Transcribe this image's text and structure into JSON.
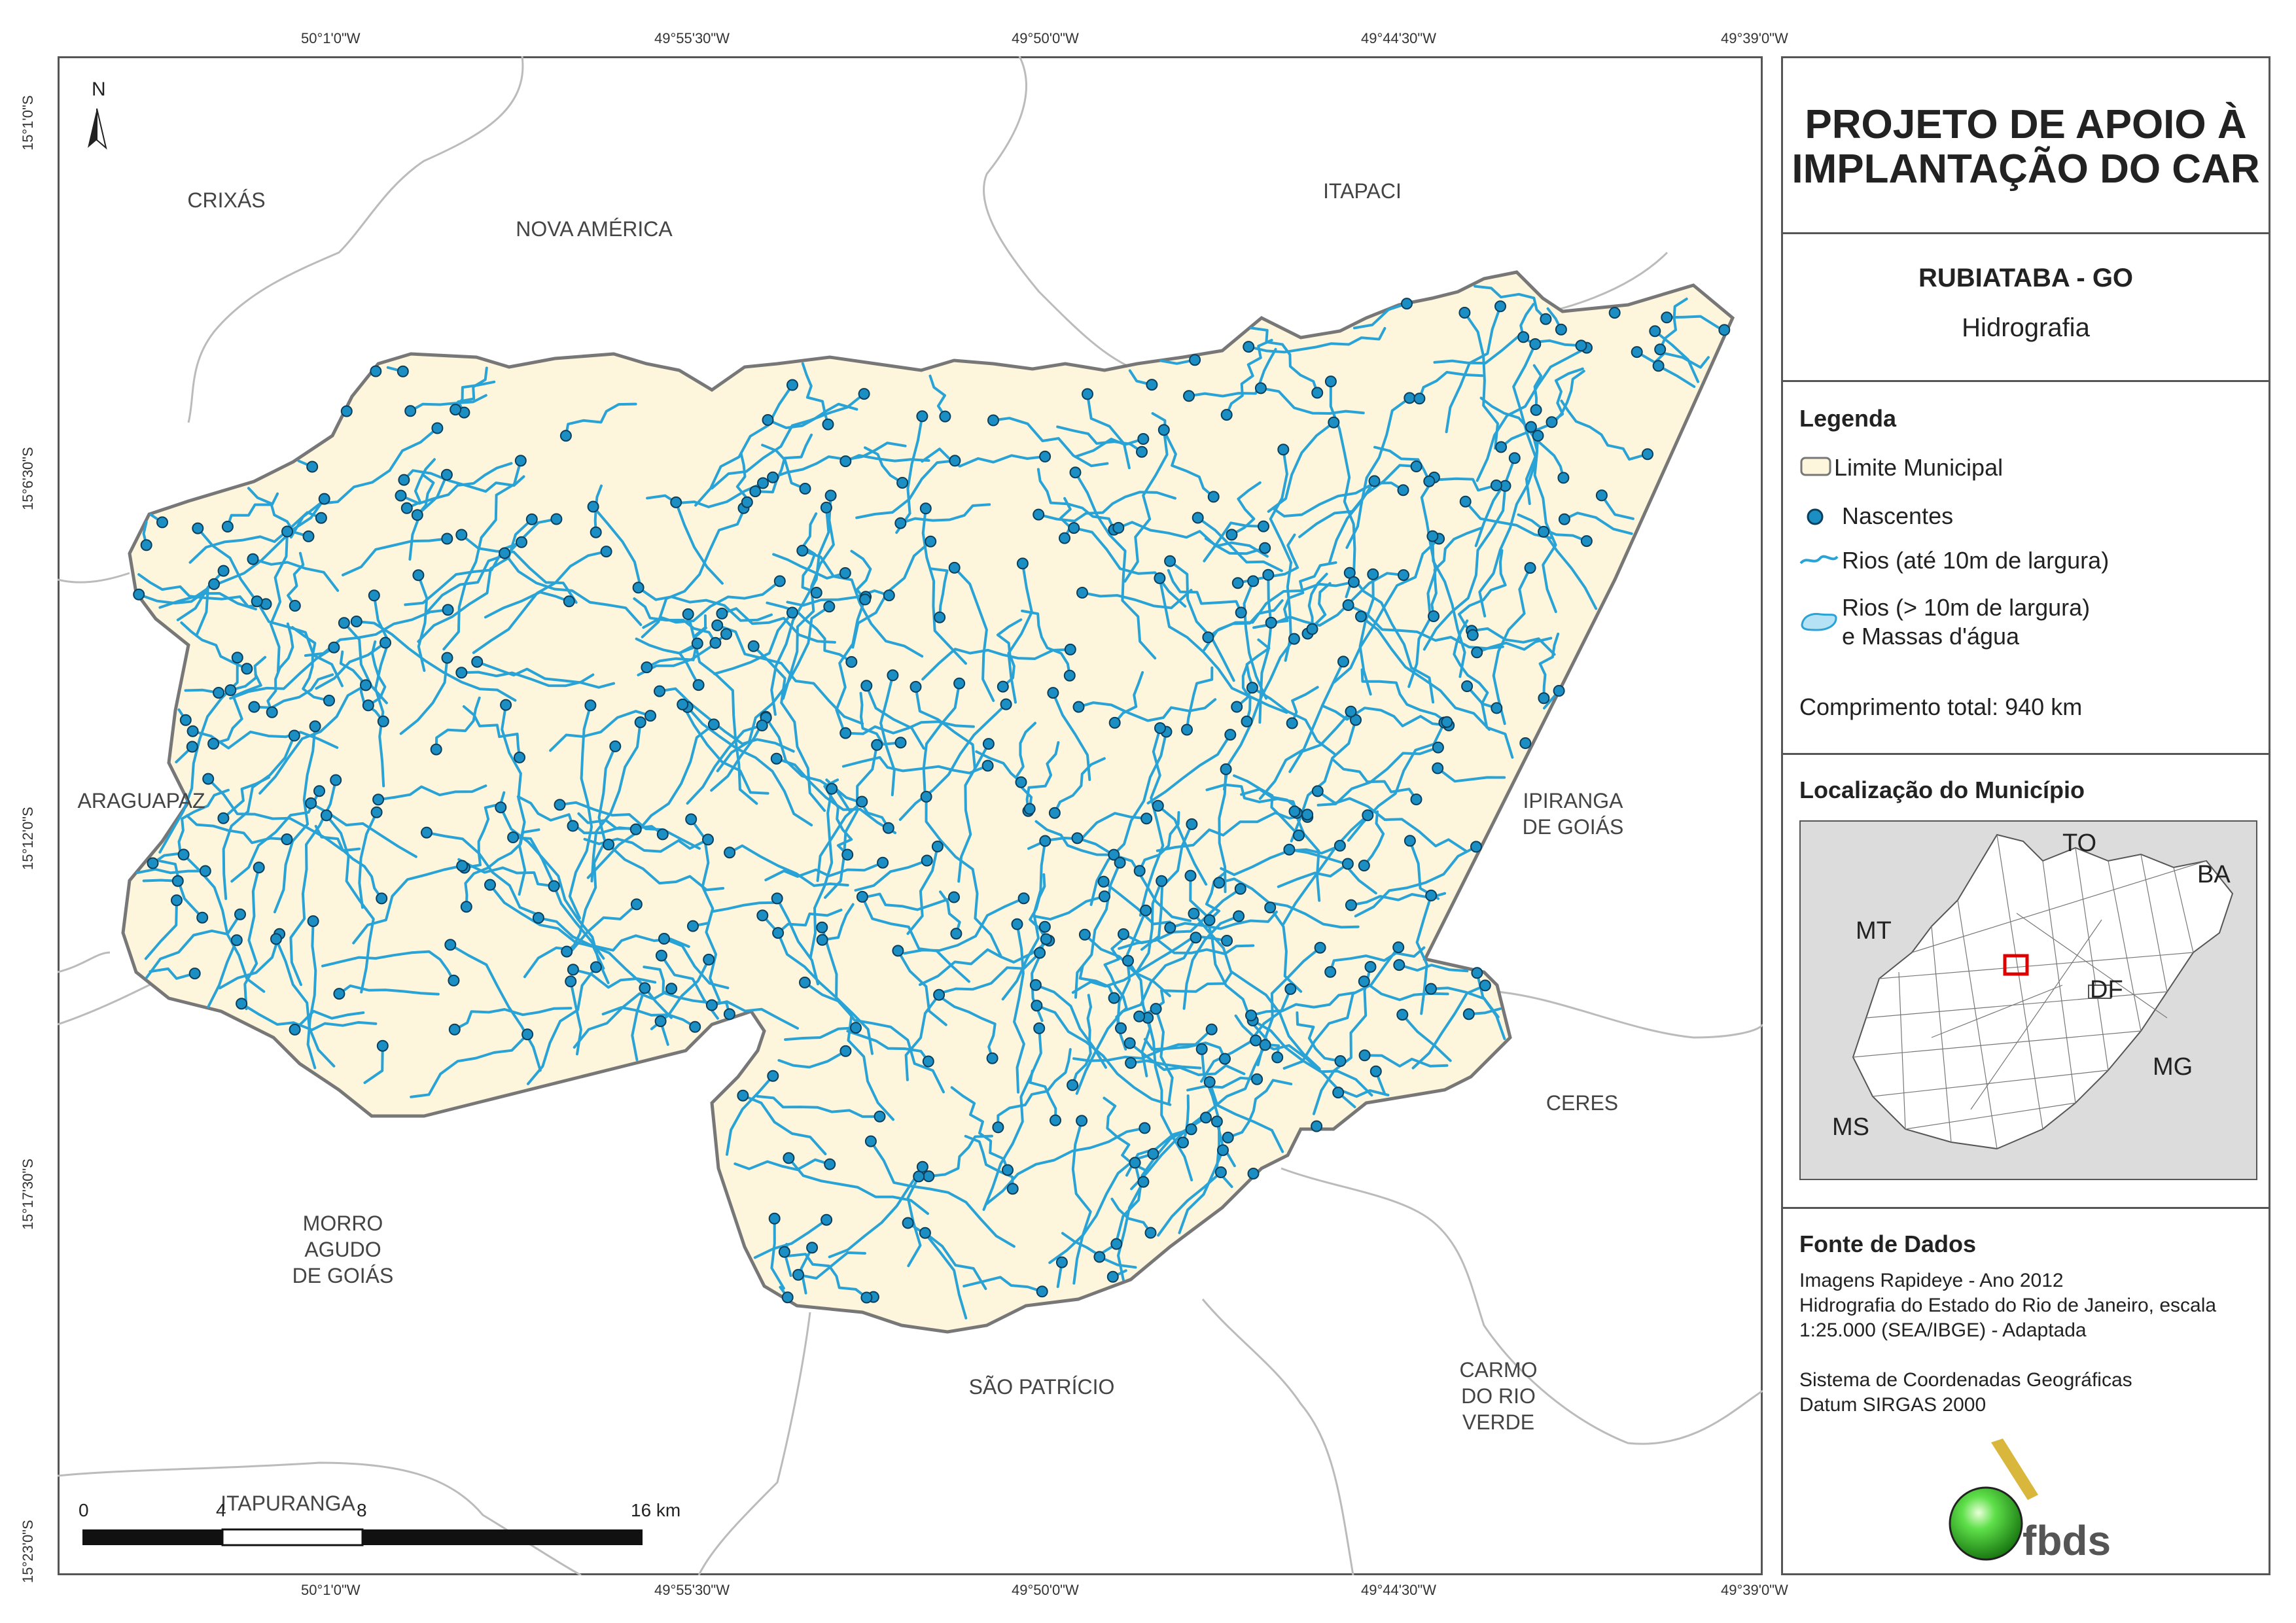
{
  "coords": {
    "top": [
      "50°1'0\"W",
      "49°55'30\"W",
      "49°50'0\"W",
      "49°44'30\"W",
      "49°39'0\"W"
    ],
    "bottom": [
      "50°1'0\"W",
      "49°55'30\"W",
      "49°50'0\"W",
      "49°44'30\"W",
      "49°39'0\"W"
    ],
    "left": [
      "15°1'0\"S",
      "15°6'30\"S",
      "15°12'0\"S",
      "15°17'30\"S",
      "15°23'0\"S"
    ]
  },
  "municipalities": {
    "crixas": "CRIXÁS",
    "nova_america": "NOVA AMÉRICA",
    "itapaci": "ITAPACI",
    "araguapaz": "ARAGUAPAZ",
    "ipiranga_1": "IPIRANGA",
    "ipiranga_2": "DE GOIÁS",
    "ceres": "CERES",
    "morro_1": "MORRO",
    "morro_2": "AGUDO",
    "morro_3": "DE GOIÁS",
    "sao_patricio": "SÃO PATRÍCIO",
    "carmo_1": "CARMO",
    "carmo_2": "DO RIO",
    "carmo_3": "VERDE",
    "itapuranga": "ITAPURANGA"
  },
  "north_label": "N",
  "scale": {
    "labels": [
      "0",
      "4",
      "8",
      "16 km"
    ]
  },
  "panel": {
    "title_line1": "PROJETO DE APOIO À",
    "title_line2": "IMPLANTAÇÃO DO CAR",
    "municipality": "RUBIATABA - GO",
    "theme": "Hidrografia",
    "legend_title": "Legenda",
    "legend": {
      "boundary": "Limite Municipal",
      "springs": "Nascentes",
      "rivers_small": "Rios (até 10m de largura)",
      "rivers_large_1": "Rios (> 10m de largura)",
      "rivers_large_2": "e Massas d'água"
    },
    "total_length": "Comprimento total:  940 km",
    "location_title": "Localização do Município",
    "inset_labels": {
      "to": "TO",
      "ba": "BA",
      "mt": "MT",
      "df": "DF",
      "mg": "MG",
      "ms": "MS"
    },
    "sources_title": "Fonte de Dados",
    "sources": [
      "Imagens Rapideye - Ano 2012",
      "Hidrografia do Estado do Rio de Janeiro, escala",
      "1:25.000 (SEA/IBGE) - Adaptada"
    ],
    "crs": [
      "Sistema de Coordenadas Geográficas",
      "Datum SIRGAS 2000"
    ],
    "logo_text": "fbds"
  },
  "colors": {
    "municipality_fill": "#fdf5dc",
    "municipality_border": "#777777",
    "river": "#29a3d6",
    "spring_fill": "#1b8fc4",
    "spring_stroke": "#0b3f5c",
    "neighbor_border": "#bbbbbb",
    "inset_highlight": "#dd0000",
    "logo_green": "#3ec42a",
    "logo_bar": "#d9b63c"
  }
}
